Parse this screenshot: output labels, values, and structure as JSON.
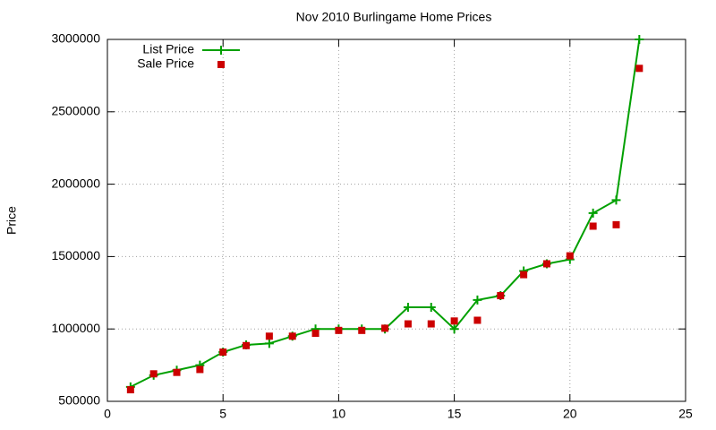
{
  "chart_data": {
    "type": "scatter",
    "title": "Nov 2010 Burlingame Home Prices",
    "y_label": "Price",
    "x": [
      1,
      2,
      3,
      4,
      5,
      6,
      7,
      8,
      9,
      10,
      11,
      12,
      13,
      14,
      15,
      16,
      17,
      18,
      19,
      20,
      21,
      22,
      23
    ],
    "series": [
      {
        "name": "List Price",
        "color": "#00a000",
        "style": "linespoints",
        "values": [
          600000,
          680000,
          715000,
          750000,
          840000,
          890000,
          900000,
          950000,
          1000000,
          1000000,
          1000000,
          1000000,
          1150000,
          1150000,
          1000000,
          1200000,
          1230000,
          1400000,
          1450000,
          1480000,
          1800000,
          1890000,
          3000000
        ]
      },
      {
        "name": "Sale Price",
        "color": "#cc0000",
        "style": "points",
        "values": [
          580000,
          690000,
          700000,
          720000,
          840000,
          885000,
          950000,
          950000,
          970000,
          990000,
          990000,
          1005000,
          1035000,
          1035000,
          1055000,
          1060000,
          1230000,
          1375000,
          1450000,
          1505000,
          1710000,
          1720000,
          2800000
        ]
      }
    ],
    "xlim": [
      0,
      25
    ],
    "xticks": [
      0,
      5,
      10,
      15,
      20,
      25
    ],
    "ylim": [
      500000,
      3000000
    ],
    "yticks": [
      500000,
      1000000,
      1500000,
      2000000,
      2500000,
      3000000
    ],
    "grid": true,
    "legend": "top-left"
  }
}
